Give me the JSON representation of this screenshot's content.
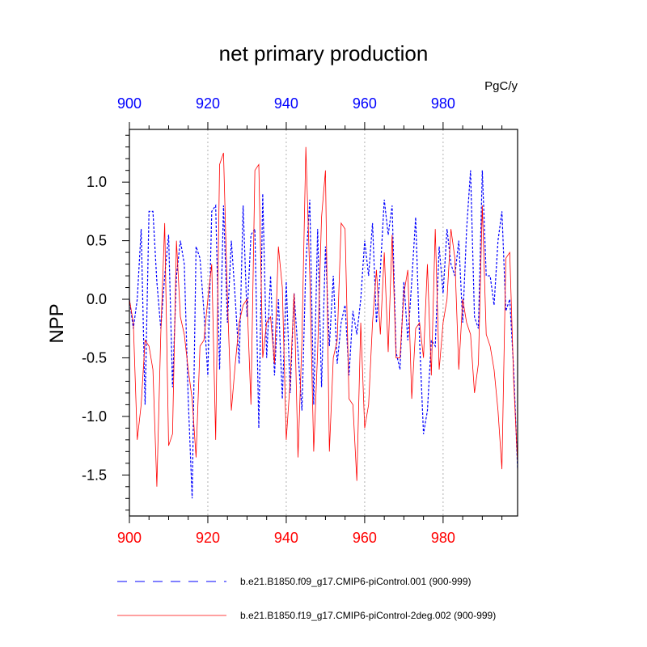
{
  "chart_data": {
    "type": "line",
    "title": "net primary production",
    "units": "PgC/y",
    "ylabel": "NPP",
    "xlabel": "",
    "xlim": [
      900,
      999
    ],
    "ylim": [
      -1.85,
      1.45
    ],
    "xticks": [
      900,
      920,
      940,
      960,
      980
    ],
    "xtick_labels": [
      "900",
      "920",
      "940",
      "960",
      "980"
    ],
    "yticks": [
      1.0,
      0.5,
      0.0,
      -0.5,
      -1.0,
      -1.5
    ],
    "ytick_labels": [
      "1.0",
      "0.5",
      "0.0",
      "-0.5",
      "-1.0",
      "-1.5"
    ],
    "grid": "vertical dotted at major x ticks",
    "colors": {
      "top_axis": "#0000ff",
      "bottom_axis": "#ff0000",
      "series1": "#0000ff",
      "series2": "#ff0000",
      "grid": "#b0b0b0"
    },
    "legend_position": "bottom",
    "series": [
      {
        "name": "b.e21.B1850.f09_g17.CMIP6-piControl.001 (900-999)",
        "style": "dashed",
        "color": "#0000ff",
        "x_start": 900,
        "values": [
          0.0,
          -0.25,
          0.0,
          0.6,
          -0.9,
          0.75,
          0.75,
          0.15,
          -0.25,
          0.2,
          0.55,
          -0.75,
          0.2,
          0.5,
          0.3,
          -0.85,
          -1.7,
          0.45,
          0.35,
          -0.1,
          -0.65,
          0.75,
          0.8,
          -0.6,
          0.8,
          -0.2,
          0.5,
          0.0,
          -0.55,
          0.8,
          -0.15,
          0.55,
          0.6,
          -1.1,
          0.9,
          -0.5,
          0.2,
          -0.65,
          0.0,
          -0.85,
          0.15,
          -0.8,
          0.05,
          -0.45,
          -0.95,
          0.3,
          0.85,
          -0.9,
          0.6,
          -0.75,
          0.45,
          -0.4,
          0.2,
          -0.55,
          -0.2,
          -0.05,
          -0.65,
          -0.1,
          -0.3,
          0.0,
          0.5,
          0.2,
          0.65,
          -0.2,
          0.25,
          0.85,
          0.55,
          0.8,
          -0.45,
          -0.6,
          0.15,
          -0.35,
          0.15,
          0.7,
          -0.35,
          -1.15,
          -0.95,
          -0.35,
          -0.4,
          0.45,
          0.05,
          0.6,
          0.3,
          0.2,
          0.5,
          -0.2,
          0.6,
          1.1,
          -0.15,
          -0.25,
          1.1,
          0.2,
          0.2,
          -0.05,
          0.5,
          0.75,
          -0.1,
          0.0,
          -0.6,
          -1.45
        ]
      },
      {
        "name": "b.e21.B1850.f19_g17.CMIP6-piControl-2deg.002 (900-999)",
        "style": "solid",
        "color": "#ff0000",
        "x_start": 900,
        "values": [
          0.0,
          -0.2,
          -1.2,
          -0.9,
          -0.35,
          -0.4,
          -0.6,
          -1.6,
          -0.3,
          0.65,
          -1.25,
          -1.15,
          0.5,
          -0.15,
          -0.3,
          -0.6,
          -0.85,
          -1.35,
          -0.4,
          -0.35,
          0.0,
          0.3,
          -1.2,
          1.15,
          1.25,
          0.0,
          -0.95,
          -0.55,
          -0.2,
          -0.05,
          0.0,
          -0.9,
          1.1,
          1.15,
          -0.5,
          -0.2,
          -0.15,
          -0.55,
          0.45,
          0.1,
          -1.2,
          -0.7,
          0.05,
          -1.35,
          -0.35,
          1.3,
          0.2,
          -1.3,
          -0.45,
          0.7,
          1.1,
          -1.3,
          -0.5,
          -0.35,
          0.65,
          0.6,
          -0.85,
          -0.9,
          -1.55,
          -0.2,
          -1.1,
          -0.9,
          -0.2,
          0.25,
          -0.3,
          0.4,
          -0.45,
          0.55,
          -0.5,
          -0.5,
          0.05,
          0.25,
          -0.85,
          -0.25,
          -0.2,
          -0.5,
          0.3,
          -0.65,
          0.6,
          -0.6,
          -0.2,
          0.0,
          0.6,
          0.35,
          -0.6,
          0.0,
          -0.2,
          -0.3,
          -0.8,
          -0.55,
          0.8,
          -0.3,
          -0.4,
          -0.6,
          -0.95,
          -1.45,
          0.35,
          0.4,
          -0.7,
          -1.4
        ]
      }
    ]
  }
}
